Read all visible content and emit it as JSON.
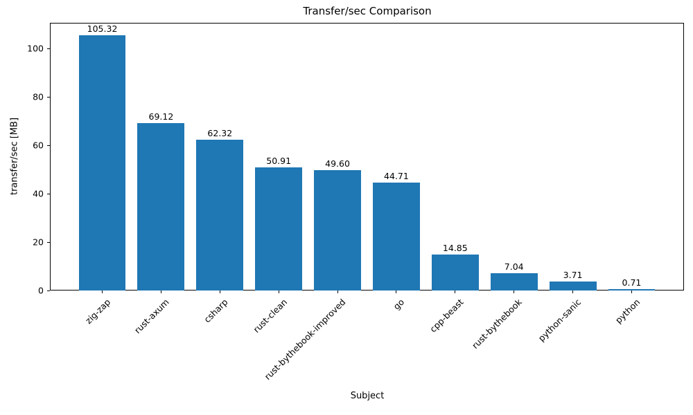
{
  "chart_data": {
    "type": "bar",
    "title": "Transfer/sec Comparison",
    "xlabel": "Subject",
    "ylabel": "transfer/sec [MB]",
    "categories": [
      "zig-zap",
      "rust-axum",
      "csharp",
      "rust-clean",
      "rust-bythebook-improved",
      "go",
      "cpp-beast",
      "rust-bythebook",
      "python-sanic",
      "python"
    ],
    "values": [
      105.32,
      69.12,
      62.32,
      50.91,
      49.6,
      44.71,
      14.85,
      7.04,
      3.71,
      0.71
    ],
    "value_labels": [
      "105.32",
      "69.12",
      "62.32",
      "50.91",
      "49.60",
      "44.71",
      "14.85",
      "7.04",
      "3.71",
      "0.71"
    ],
    "ylim": [
      0,
      110.6
    ],
    "yticks": [
      0,
      20,
      40,
      60,
      80,
      100
    ],
    "bar_color": "#1f77b4",
    "text_color": "#000000",
    "grid": false,
    "legend": null,
    "bar_width_fraction": 0.8,
    "x_tick_rotation_deg": 45
  }
}
